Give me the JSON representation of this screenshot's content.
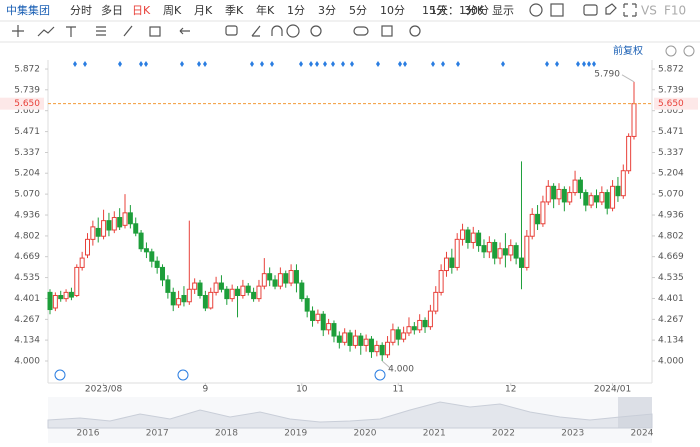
{
  "toolbar": {
    "stock": "中集集团",
    "tabs": [
      "分时",
      "多日",
      "日K",
      "周K",
      "月K",
      "季K",
      "年K",
      "1分",
      "3分",
      "5分",
      "10分",
      "15分",
      "30分"
    ],
    "interval": "1天：1分K",
    "display": "显示",
    "vs": "VS",
    "f10": "F10"
  },
  "adjust": "前复权",
  "chart_data": {
    "type": "candlestick",
    "categories": [
      null,
      null,
      null,
      null,
      null,
      null,
      null,
      null,
      null,
      null,
      "2023/08",
      null,
      null,
      null,
      null,
      null,
      null,
      null,
      null,
      null,
      null,
      null,
      null,
      null,
      null,
      null,
      null,
      null,
      null,
      "9",
      null,
      null,
      null,
      null,
      null,
      null,
      null,
      null,
      null,
      null,
      null,
      null,
      null,
      null,
      null,
      null,
      null,
      "10",
      null,
      null,
      null,
      null,
      null,
      null,
      null,
      null,
      null,
      null,
      null,
      null,
      null,
      null,
      null,
      null,
      null,
      "11",
      null,
      null,
      null,
      null,
      null,
      null,
      null,
      null,
      null,
      null,
      null,
      null,
      null,
      null,
      null,
      null,
      null,
      null,
      null,
      null,
      "12",
      null,
      null,
      null,
      null,
      null,
      null,
      null,
      null,
      null,
      null,
      null,
      null,
      null,
      null,
      null,
      null,
      null,
      null,
      "2024/01",
      null,
      null,
      null,
      null
    ],
    "open": [
      4.44,
      4.34,
      4.42,
      4.4,
      4.44,
      4.42,
      4.6,
      4.68,
      4.78,
      4.85,
      4.8,
      4.9,
      4.84,
      4.92,
      4.87,
      4.95,
      4.88,
      4.82,
      4.72,
      4.7,
      4.64,
      4.6,
      4.52,
      4.44,
      4.36,
      4.42,
      4.38,
      4.46,
      4.5,
      4.42,
      4.34,
      4.44,
      4.5,
      4.46,
      4.4,
      4.46,
      4.42,
      4.48,
      4.44,
      4.4,
      4.48,
      4.56,
      4.52,
      4.48,
      4.56,
      4.5,
      4.58,
      4.5,
      4.4,
      4.32,
      4.26,
      4.3,
      4.2,
      4.24,
      4.16,
      4.12,
      4.18,
      4.1,
      4.16,
      4.1,
      4.14,
      4.06,
      4.1,
      4.04,
      4.12,
      4.2,
      4.14,
      4.18,
      4.22,
      4.2,
      4.26,
      4.22,
      4.32,
      4.44,
      4.58,
      4.66,
      4.6,
      4.78,
      4.84,
      4.76,
      4.82,
      4.74,
      4.7,
      4.76,
      4.66,
      4.72,
      4.68,
      4.74,
      4.66,
      4.6,
      4.8,
      4.94,
      4.88,
      5.02,
      5.12,
      5.04,
      5.1,
      5.02,
      5.08,
      5.16,
      5.08,
      5.0,
      5.06,
      5.02,
      5.08,
      4.98,
      5.12,
      5.06,
      5.22,
      5.44
    ],
    "high": [
      4.46,
      4.44,
      4.45,
      4.46,
      4.47,
      4.62,
      4.7,
      4.82,
      4.9,
      4.92,
      4.97,
      4.95,
      4.96,
      4.98,
      5.07,
      5.0,
      4.92,
      4.84,
      4.76,
      4.72,
      4.67,
      4.62,
      4.55,
      4.47,
      4.45,
      4.48,
      4.9,
      4.53,
      4.52,
      4.45,
      4.47,
      4.54,
      4.55,
      4.48,
      4.49,
      4.48,
      4.52,
      4.5,
      4.47,
      4.52,
      4.66,
      4.6,
      4.55,
      4.6,
      4.58,
      4.62,
      4.62,
      4.52,
      4.42,
      4.35,
      4.33,
      4.32,
      4.27,
      4.26,
      4.19,
      4.21,
      4.2,
      4.2,
      4.18,
      4.17,
      4.16,
      4.13,
      4.12,
      4.16,
      4.24,
      4.22,
      4.22,
      4.28,
      4.25,
      4.3,
      4.28,
      4.36,
      4.48,
      4.62,
      4.7,
      4.72,
      4.82,
      4.88,
      4.86,
      4.86,
      4.84,
      4.78,
      4.8,
      4.78,
      4.76,
      4.82,
      4.78,
      4.76,
      5.28,
      4.84,
      4.98,
      5.0,
      5.06,
      5.16,
      5.14,
      5.14,
      5.12,
      5.12,
      5.22,
      5.18,
      5.1,
      5.08,
      5.1,
      5.12,
      5.1,
      5.16,
      5.18,
      5.26,
      5.46,
      5.79
    ],
    "low": [
      4.3,
      4.32,
      4.38,
      4.38,
      4.39,
      4.41,
      4.58,
      4.66,
      4.74,
      4.76,
      4.78,
      4.8,
      4.82,
      4.84,
      4.85,
      4.85,
      4.8,
      4.7,
      4.66,
      4.6,
      4.56,
      4.48,
      4.4,
      4.32,
      4.34,
      4.35,
      4.36,
      4.43,
      4.4,
      4.32,
      4.33,
      4.42,
      4.44,
      4.36,
      4.38,
      4.28,
      4.4,
      4.42,
      4.38,
      4.38,
      4.46,
      4.48,
      4.46,
      4.46,
      4.47,
      4.48,
      4.44,
      4.38,
      4.28,
      4.22,
      4.24,
      4.16,
      4.17,
      4.12,
      4.08,
      4.1,
      4.06,
      4.08,
      4.04,
      4.06,
      4.02,
      4.03,
      4.0,
      4.02,
      4.1,
      4.1,
      4.12,
      4.16,
      4.17,
      4.18,
      4.18,
      4.2,
      4.3,
      4.42,
      4.54,
      4.56,
      4.58,
      4.74,
      4.72,
      4.72,
      4.7,
      4.66,
      4.66,
      4.62,
      4.62,
      4.6,
      4.64,
      4.62,
      4.46,
      4.58,
      4.78,
      4.84,
      4.86,
      5.0,
      4.98,
      5.0,
      4.96,
      5.0,
      5.06,
      5.04,
      4.96,
      4.98,
      4.98,
      5.0,
      4.94,
      4.96,
      5.02,
      5.04,
      5.2,
      5.42
    ],
    "close": [
      4.33,
      4.42,
      4.4,
      4.44,
      4.41,
      4.6,
      4.66,
      4.78,
      4.86,
      4.8,
      4.9,
      4.84,
      4.92,
      4.86,
      4.95,
      4.88,
      4.82,
      4.72,
      4.7,
      4.64,
      4.6,
      4.52,
      4.44,
      4.36,
      4.4,
      4.38,
      4.46,
      4.5,
      4.42,
      4.34,
      4.44,
      4.5,
      4.46,
      4.4,
      4.46,
      4.42,
      4.48,
      4.44,
      4.4,
      4.48,
      4.56,
      4.52,
      4.48,
      4.56,
      4.5,
      4.58,
      4.5,
      4.4,
      4.32,
      4.26,
      4.3,
      4.2,
      4.24,
      4.16,
      4.12,
      4.18,
      4.1,
      4.16,
      4.1,
      4.14,
      4.06,
      4.1,
      4.04,
      4.12,
      4.2,
      4.14,
      4.18,
      4.22,
      4.2,
      4.26,
      4.22,
      4.32,
      4.44,
      4.58,
      4.66,
      4.6,
      4.78,
      4.84,
      4.76,
      4.82,
      4.74,
      4.7,
      4.76,
      4.66,
      4.72,
      4.68,
      4.74,
      4.66,
      4.6,
      4.8,
      4.94,
      4.88,
      5.02,
      5.12,
      5.04,
      5.1,
      5.02,
      5.08,
      5.16,
      5.08,
      5.0,
      5.06,
      5.02,
      5.08,
      4.98,
      5.12,
      5.06,
      5.22,
      5.44,
      5.65
    ],
    "up_color": "#e8413a",
    "down_color": "#1d9e3a",
    "ylim": [
      3.859,
      5.93
    ],
    "yticks": [
      {
        "value": 4,
        "label": "4.000"
      },
      4.134,
      4.267,
      4.401,
      4.535,
      4.669,
      4.802,
      4.936,
      {
        "value": 5.07,
        "label": "5.070"
      },
      5.204,
      5.337,
      5.471,
      5.605,
      5.739,
      5.872
    ],
    "grid": false,
    "last_price": {
      "value": 5.65,
      "label": "5.650"
    },
    "max_label": {
      "value": 5.79,
      "label": "5.790"
    },
    "min_label": {
      "value": 4,
      "label": "4.000"
    }
  },
  "navigator": {
    "labels": [
      "2016",
      "2017",
      "2018",
      "2019",
      "2020",
      "2021",
      "2022",
      "2023",
      "2024"
    ]
  }
}
